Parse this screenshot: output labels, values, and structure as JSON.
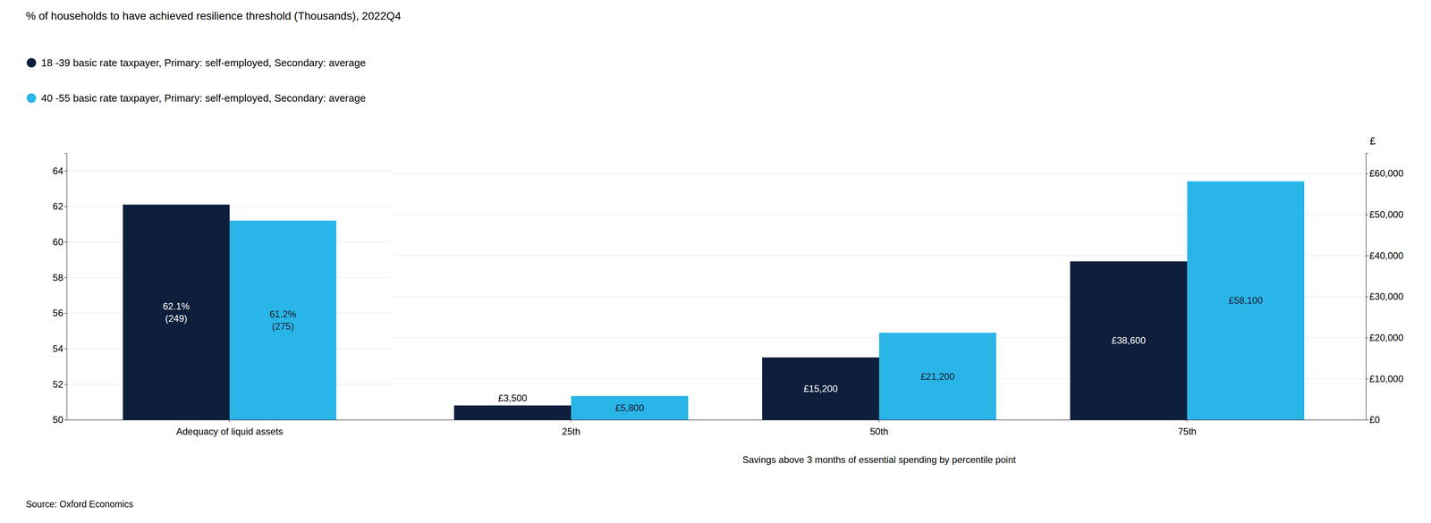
{
  "chart_data": [
    {
      "type": "bar",
      "title": "% of households to have achieved resilience threshold (Thousands), 2022Q4",
      "categories": [
        "Adequacy of liquid assets"
      ],
      "series": [
        {
          "name": "18 -39 basic rate taxpayer, Primary: self-employed, Secondary: average",
          "color": "#0d1f3c",
          "values": [
            62.1
          ],
          "value_labels": [
            "62.1%\n(249)"
          ]
        },
        {
          "name": "40 -55 basic rate taxpayer, Primary: self-employed, Secondary: average",
          "color": "#29b5e8",
          "values": [
            61.2
          ],
          "value_labels": [
            "61.2%\n(275)"
          ]
        }
      ],
      "ylim": [
        50,
        65
      ],
      "yticks": [
        50,
        52,
        54,
        56,
        58,
        60,
        62,
        64
      ],
      "grid": true,
      "data_labels": true,
      "annotations": [
        "Source: Oxford Economics"
      ]
    },
    {
      "type": "bar",
      "categories": [
        "25th",
        "50th",
        "75th"
      ],
      "series": [
        {
          "color": "#0d1f3c",
          "values": [
            3500,
            15200,
            38600
          ],
          "value_labels": [
            "£3,500",
            "£15,200",
            "£38,600"
          ]
        },
        {
          "color": "#29b5e8",
          "values": [
            5800,
            21200,
            58100
          ],
          "value_labels": [
            "£5,800",
            "£21,200",
            "£58,100"
          ]
        }
      ],
      "ylim": [
        0,
        65000
      ],
      "yticks": [
        {
          "value": 0,
          "label": "£0"
        },
        {
          "value": 10000,
          "label": "£10,000"
        },
        {
          "value": 20000,
          "label": "£20,000"
        },
        {
          "value": 30000,
          "label": "£30,000"
        },
        {
          "value": 40000,
          "label": "£40,000"
        },
        {
          "value": 50000,
          "label": "£50,000"
        },
        {
          "value": 60000,
          "label": "£60,000"
        }
      ],
      "ylabel": "£",
      "xlabel": "Savings above 3 months of essential spending by percentile point",
      "grid": true,
      "data_labels": true
    }
  ]
}
